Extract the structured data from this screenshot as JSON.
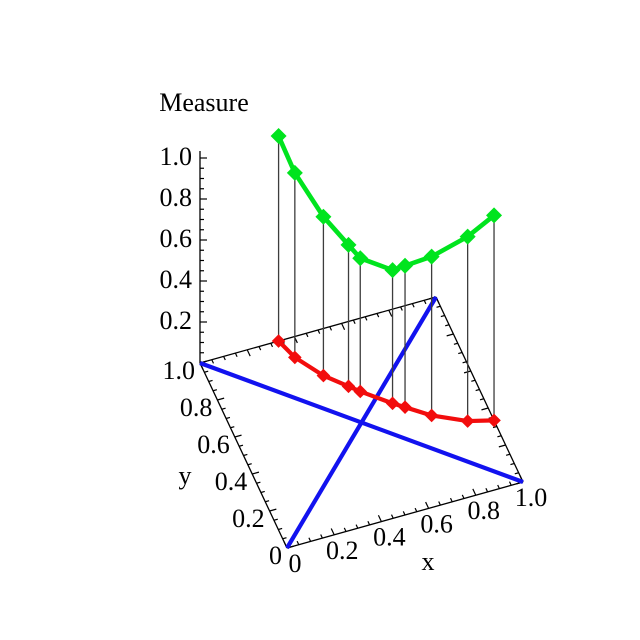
{
  "page": {
    "background": "#ffffff"
  },
  "chart_data": {
    "type": "line3d",
    "title": "Measure",
    "xlabel": "x",
    "ylabel": "y",
    "zlabel": "Measure",
    "xlim": [
      0,
      1
    ],
    "ylim": [
      0,
      1
    ],
    "zlim": [
      0,
      1
    ],
    "grid": false,
    "legend": "none",
    "axis_color": "#000000",
    "major_tick_step": 0.2,
    "minor_tick_step": 0.05,
    "tick_labels": {
      "x": [
        "0",
        "0.2",
        "0.4",
        "0.6",
        "0.8",
        "1.0"
      ],
      "y": [
        "0",
        "0.2",
        "0.4",
        "0.6",
        "0.8",
        "1.0"
      ],
      "z": [
        "0.2",
        "0.4",
        "0.6",
        "0.8",
        "1.0"
      ]
    },
    "series": [
      {
        "name": "measure-curve-green",
        "color": "#00e41e",
        "marker": "diamond",
        "marker_size": 8,
        "line_width": 4.6,
        "points": [
          {
            "x": 0.333,
            "y": 1.0,
            "z": 1.0
          },
          {
            "x": 0.365,
            "y": 0.9,
            "z": 0.9
          },
          {
            "x": 0.44,
            "y": 0.775,
            "z": 0.775
          },
          {
            "x": 0.515,
            "y": 0.69,
            "z": 0.69
          },
          {
            "x": 0.55,
            "y": 0.65,
            "z": 0.65
          },
          {
            "x": 0.65,
            "y": 0.55,
            "z": 0.65
          },
          {
            "x": 0.69,
            "y": 0.515,
            "z": 0.69
          },
          {
            "x": 0.775,
            "y": 0.44,
            "z": 0.775
          },
          {
            "x": 0.9,
            "y": 0.365,
            "z": 0.9
          },
          {
            "x": 1.0,
            "y": 0.333,
            "z": 1.0
          }
        ]
      },
      {
        "name": "base-path-curve-red",
        "color": "#f20d0d",
        "marker": "diamond",
        "marker_size": 6.8,
        "line_width": 4.2,
        "points": [
          {
            "x": 0.333,
            "y": 1.0,
            "z": 0
          },
          {
            "x": 0.365,
            "y": 0.9,
            "z": 0
          },
          {
            "x": 0.44,
            "y": 0.775,
            "z": 0
          },
          {
            "x": 0.515,
            "y": 0.69,
            "z": 0
          },
          {
            "x": 0.55,
            "y": 0.65,
            "z": 0
          },
          {
            "x": 0.65,
            "y": 0.55,
            "z": 0
          },
          {
            "x": 0.69,
            "y": 0.515,
            "z": 0
          },
          {
            "x": 0.775,
            "y": 0.44,
            "z": 0
          },
          {
            "x": 0.9,
            "y": 0.365,
            "z": 0
          },
          {
            "x": 1.0,
            "y": 0.333,
            "z": 0
          }
        ]
      }
    ],
    "stems": {
      "show": true,
      "color": "#3d3d3d",
      "width": 1.3
    },
    "diagonals": [
      {
        "name": "diagonal-y-equals-x",
        "color": "#1212ef",
        "width": 4.2,
        "from": {
          "x": 0,
          "y": 0
        },
        "to": {
          "x": 1,
          "y": 1
        }
      },
      {
        "name": "diagonal-y-equals-one-minus-x",
        "color": "#1212ef",
        "width": 4.2,
        "from": {
          "x": 0,
          "y": 1
        },
        "to": {
          "x": 1,
          "y": 0
        }
      }
    ]
  }
}
